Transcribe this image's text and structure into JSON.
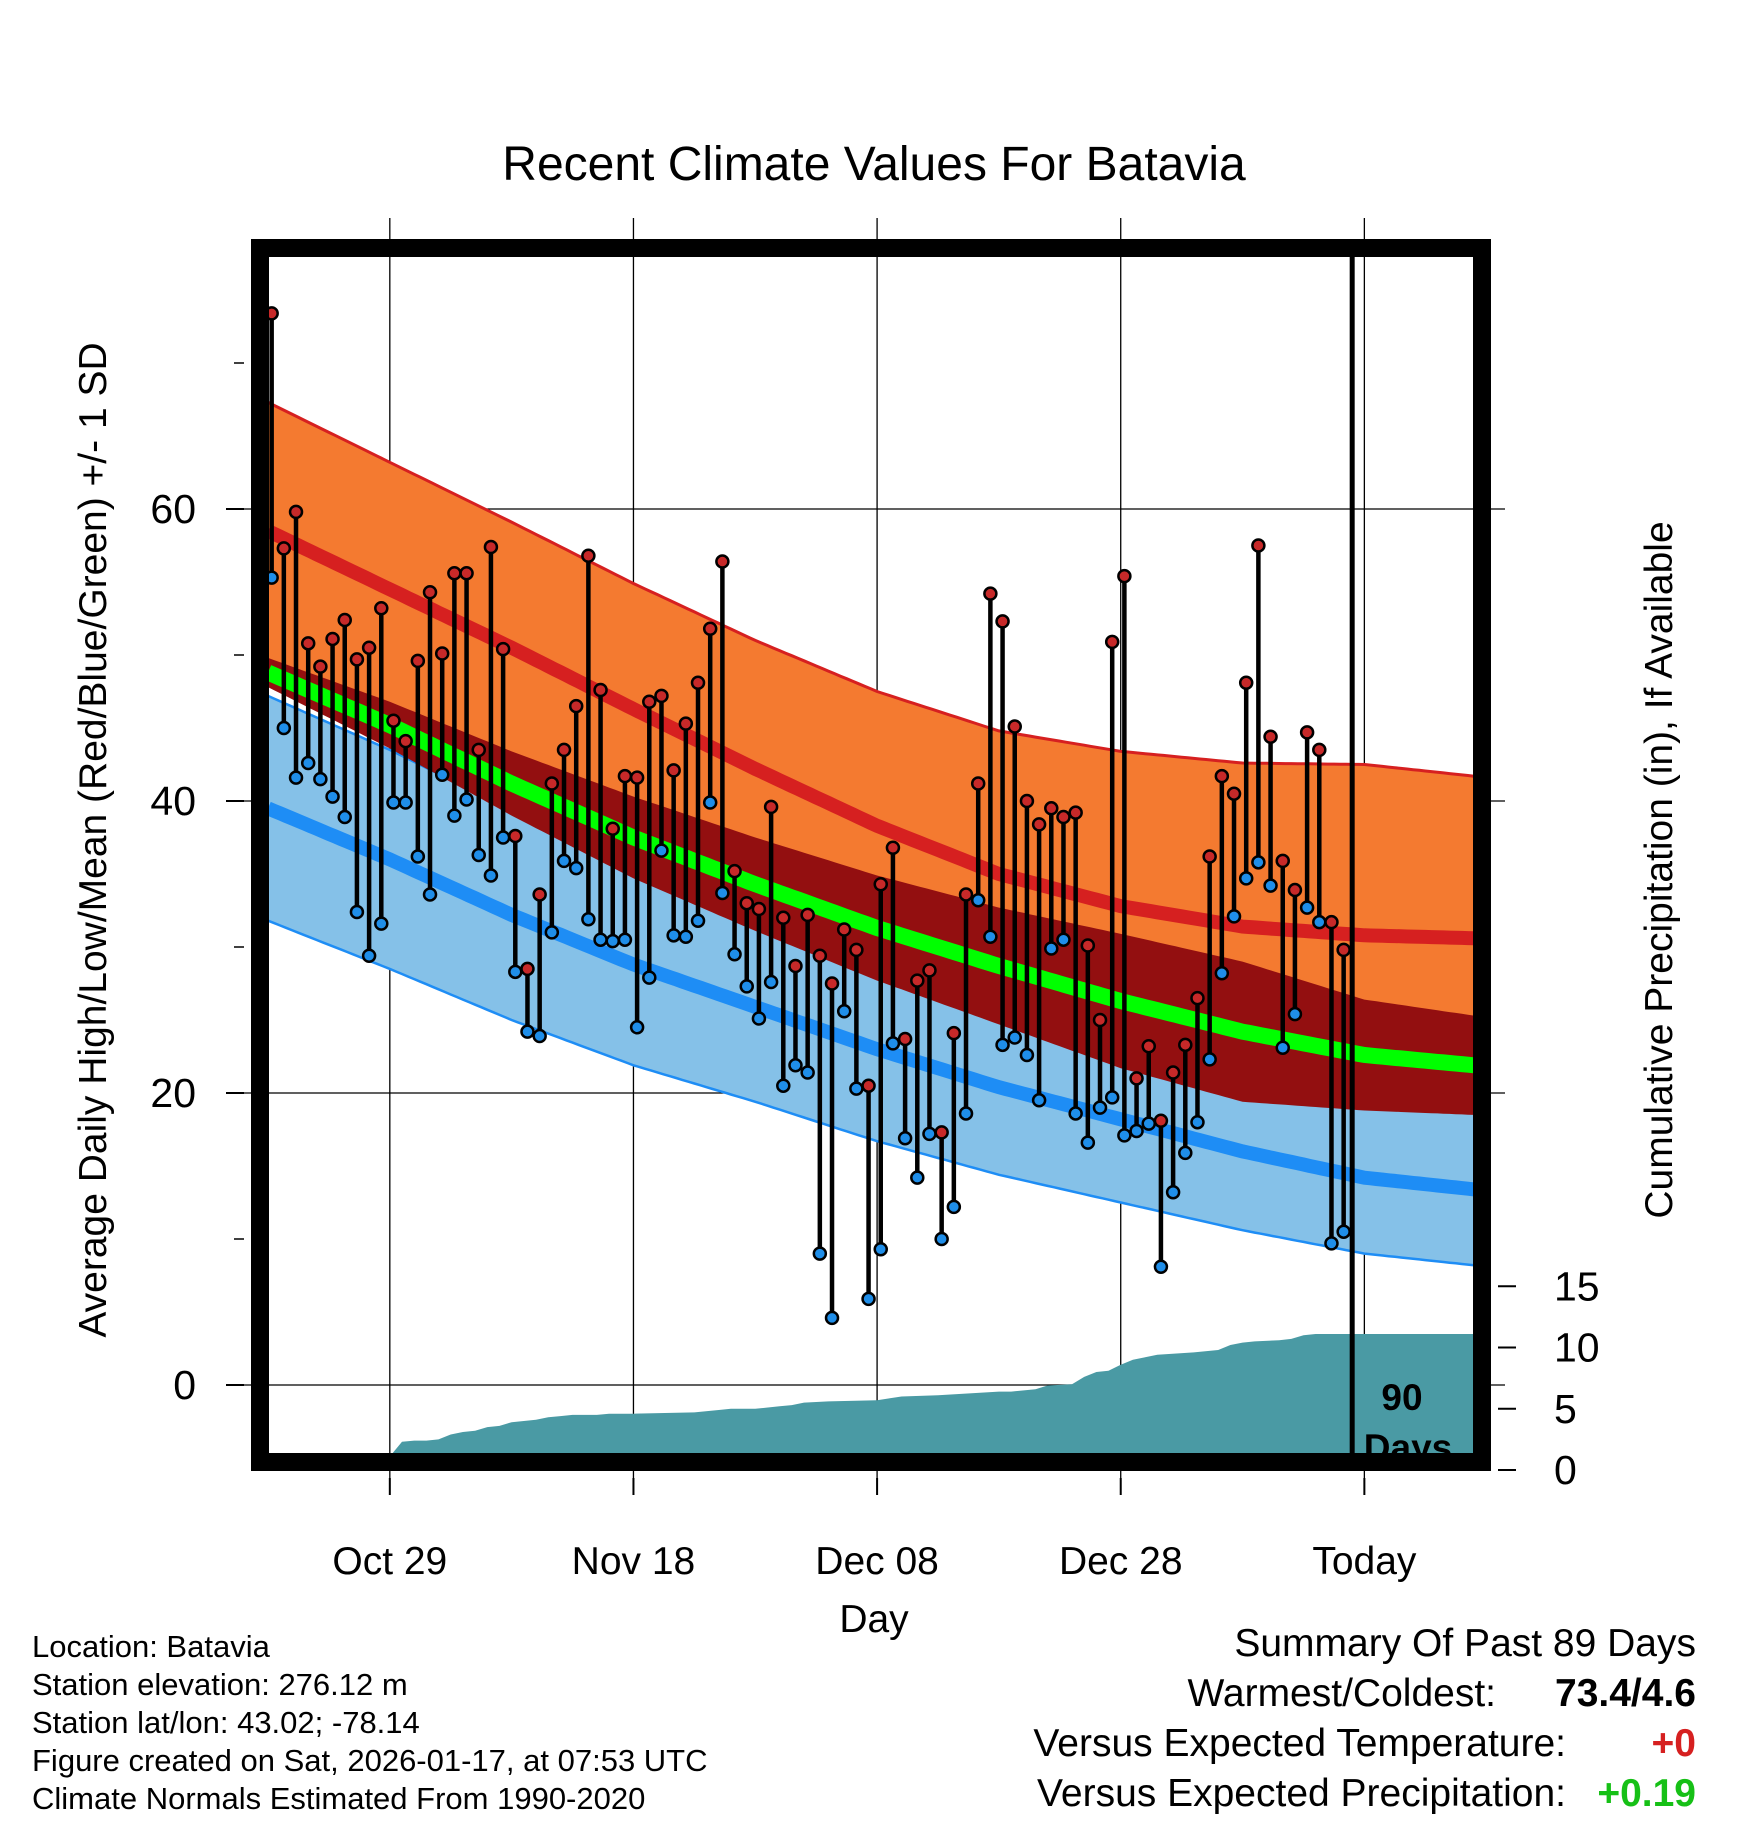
{
  "chart_data": {
    "type": "line",
    "title": "Recent Climate Values For Batavia",
    "xlabel": "Day",
    "ylabel": "Average Daily High/Low/Mean (Red/Blue/Green) +/- 1 SD",
    "y2label": "Cumulative Precipitation (in), If Available",
    "day_range": [
      0,
      99
    ],
    "today_index": 89,
    "ylim": [
      -5,
      78
    ],
    "y2lim": [
      0,
      20
    ],
    "xticks": [
      {
        "day": 10,
        "label": "Oct 29"
      },
      {
        "day": 30,
        "label": "Nov 18"
      },
      {
        "day": 50,
        "label": "Dec 08"
      },
      {
        "day": 70,
        "label": "Dec 28"
      },
      {
        "day": 90,
        "label": "Today"
      }
    ],
    "yticks": [
      0,
      20,
      40,
      60
    ],
    "y2ticks": [
      0,
      5,
      10,
      15
    ],
    "today_label": [
      "90",
      "Days"
    ],
    "highs": [
      73.4,
      57.3,
      59.8,
      50.8,
      49.2,
      51.1,
      52.4,
      49.7,
      50.5,
      53.2,
      45.5,
      44.1,
      49.6,
      54.3,
      50.1,
      55.6,
      55.6,
      43.5,
      57.4,
      50.4,
      37.6,
      28.5,
      33.6,
      41.2,
      43.5,
      46.5,
      56.8,
      47.6,
      38.1,
      41.7,
      41.6,
      46.8,
      47.2,
      42.1,
      45.3,
      48.1,
      51.8,
      56.4,
      35.2,
      33.0,
      32.6,
      39.6,
      32.0,
      28.7,
      32.2,
      29.4,
      27.5,
      31.2,
      29.8,
      20.5,
      34.3,
      36.8,
      23.7,
      27.7,
      28.4,
      17.3,
      24.1,
      33.6,
      41.2,
      54.2,
      52.3,
      45.1,
      40.0,
      38.4,
      39.5,
      38.9,
      39.2,
      30.1,
      25.0,
      50.9,
      55.4,
      21.0,
      23.2,
      18.1,
      21.4,
      23.3,
      26.5,
      36.2,
      41.7,
      40.5,
      48.1,
      57.5,
      44.4,
      35.9,
      33.9,
      44.7,
      43.5,
      31.7,
      29.8
    ],
    "lows": [
      55.3,
      45.0,
      41.6,
      42.6,
      41.5,
      40.3,
      38.9,
      32.4,
      29.4,
      31.6,
      39.9,
      39.9,
      36.2,
      33.6,
      41.8,
      39.0,
      40.1,
      36.3,
      34.9,
      37.5,
      28.3,
      24.2,
      23.9,
      31.0,
      35.9,
      35.4,
      31.9,
      30.5,
      30.4,
      30.5,
      24.5,
      27.9,
      36.6,
      30.8,
      30.7,
      31.8,
      39.9,
      33.7,
      29.5,
      27.3,
      25.1,
      27.6,
      20.5,
      21.9,
      21.4,
      9.0,
      4.6,
      25.6,
      20.3,
      5.9,
      9.3,
      23.4,
      16.9,
      14.2,
      17.2,
      10.0,
      12.2,
      18.6,
      33.2,
      30.7,
      23.3,
      23.8,
      22.6,
      19.5,
      29.9,
      30.5,
      18.6,
      16.6,
      19.0,
      19.7,
      17.1,
      17.4,
      17.9,
      8.1,
      13.2,
      15.9,
      18.0,
      22.3,
      28.2,
      32.1,
      34.7,
      35.8,
      34.2,
      23.1,
      25.4,
      32.7,
      31.7,
      9.7,
      10.5
    ],
    "normal_high": {
      "days": [
        0,
        10,
        20,
        30,
        40,
        50,
        60,
        70,
        80,
        90,
        99
      ],
      "values": [
        58.5,
        54.5,
        50.5,
        46.3,
        42.2,
        38.3,
        35.0,
        32.8,
        31.4,
        30.8,
        30.6
      ]
    },
    "normal_high_sd": {
      "days": [
        0,
        10,
        20,
        30,
        40,
        50,
        60,
        70,
        80,
        90,
        99
      ],
      "values": [
        8.8,
        8.7,
        8.6,
        8.6,
        8.8,
        9.2,
        9.8,
        10.6,
        11.2,
        11.7,
        11.1
      ]
    },
    "normal_mean": {
      "days": [
        0,
        10,
        20,
        30,
        40,
        50,
        60,
        70,
        80,
        90,
        99
      ],
      "values": [
        48.8,
        45.2,
        41.2,
        37.5,
        34.3,
        31.3,
        28.7,
        26.3,
        24.2,
        22.6,
        21.9
      ]
    },
    "normal_mean_sd": {
      "days": [
        0,
        10,
        20,
        30,
        40,
        50,
        60,
        70,
        80,
        90,
        99
      ],
      "values": [
        1.0,
        1.6,
        2.2,
        2.8,
        3.2,
        3.6,
        4.0,
        4.6,
        4.8,
        3.8,
        3.4
      ]
    },
    "normal_low": {
      "days": [
        0,
        10,
        20,
        30,
        40,
        50,
        60,
        70,
        80,
        90,
        99
      ],
      "values": [
        39.5,
        36.0,
        32.2,
        28.8,
        25.9,
        23.0,
        20.4,
        18.2,
        16.0,
        14.2,
        13.4
      ]
    },
    "normal_low_sd": {
      "days": [
        0,
        10,
        20,
        30,
        40,
        50,
        60,
        70,
        80,
        90,
        99
      ],
      "values": [
        7.7,
        7.5,
        7.2,
        6.9,
        6.5,
        6.3,
        6.0,
        5.7,
        5.4,
        5.2,
        5.2
      ]
    },
    "precip_cumulative": {
      "days": [
        0,
        1,
        2,
        3,
        4,
        5,
        6,
        7,
        8,
        9,
        10,
        11,
        12,
        13,
        14,
        15,
        16,
        17,
        18,
        19,
        20,
        21,
        22,
        23,
        24,
        25,
        26,
        27,
        28,
        29,
        30,
        35,
        37,
        38,
        40,
        42,
        43,
        44,
        46,
        50,
        52,
        55,
        60,
        61,
        63,
        64,
        66,
        67,
        68,
        69,
        70,
        71,
        72,
        73,
        76,
        78,
        79,
        80,
        81,
        83,
        84,
        85,
        86,
        87,
        88,
        99
      ],
      "values": [
        0.1,
        0.6,
        0.8,
        1.0,
        1.05,
        1.1,
        1.1,
        1.1,
        1.1,
        1.1,
        1.1,
        2.3,
        2.4,
        2.4,
        2.5,
        2.9,
        3.1,
        3.2,
        3.5,
        3.6,
        3.9,
        4.0,
        4.1,
        4.3,
        4.4,
        4.5,
        4.5,
        4.5,
        4.6,
        4.6,
        4.6,
        4.7,
        4.9,
        5.0,
        5.0,
        5.2,
        5.3,
        5.5,
        5.6,
        5.7,
        6.0,
        6.1,
        6.4,
        6.4,
        6.6,
        6.9,
        7.0,
        7.6,
        8.0,
        8.1,
        8.6,
        9.0,
        9.2,
        9.4,
        9.6,
        9.8,
        10.2,
        10.4,
        10.5,
        10.6,
        10.7,
        11.0,
        11.1,
        11.1,
        11.1,
        11.1
      ]
    },
    "colors": {
      "high_band": "#f47a30",
      "high_line": "#d62020",
      "mean_band": "#930f10",
      "mean_line": "#00ff00",
      "low_band": "#85c1e8",
      "low_line": "#1e8df5",
      "precip": "#4a9aa4",
      "high_point": "#c72929",
      "low_point": "#1f8ee9"
    }
  },
  "info": {
    "location": "Location: Batavia",
    "elevation": "Station elevation: 276.12 m",
    "latlon": "Station lat/lon: 43.02; -78.14",
    "created": "Figure created on Sat, 2026-01-17, at 07:53 UTC",
    "normals": "Climate Normals Estimated From 1990-2020"
  },
  "summary": {
    "heading": "Summary Of Past 89 Days",
    "warm_cold_label": "Warmest/Coldest:",
    "warm_cold_value": "73.4/4.6",
    "temp_label": "Versus Expected Temperature:",
    "temp_value": "+0",
    "temp_color": "#d62020",
    "precip_label": "Versus Expected Precipitation:",
    "precip_value": "+0.19",
    "precip_color": "#16c016"
  }
}
